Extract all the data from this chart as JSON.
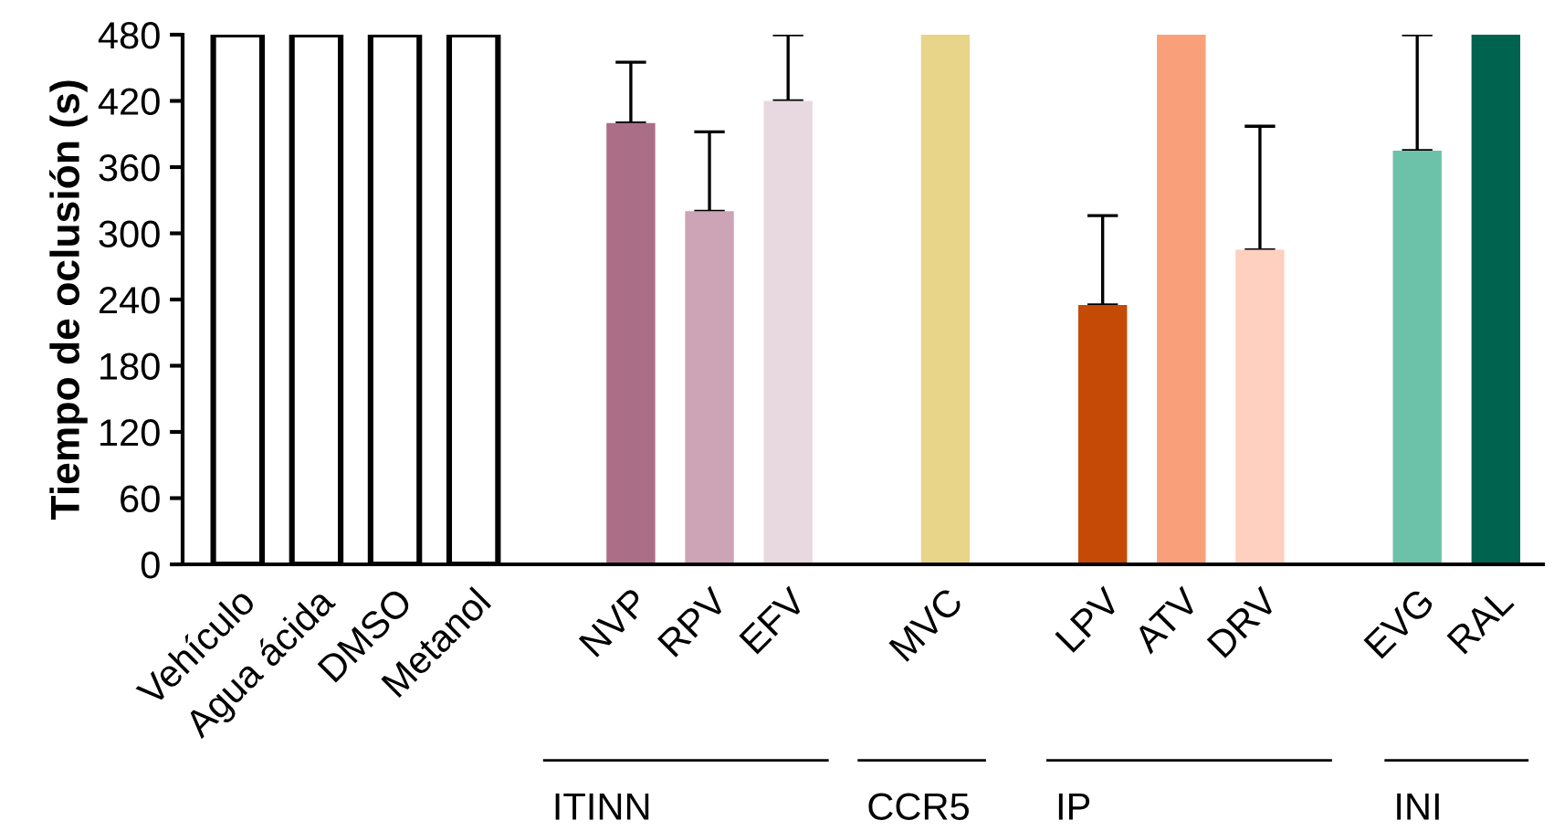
{
  "chart_data": {
    "type": "bar",
    "ylabel": "Tiempo de oclusión (s)",
    "categories": [
      "Vehículo",
      "Agua ácida",
      "DMSO",
      "Metanol",
      null,
      "NVP",
      "RPV",
      "EFV",
      null,
      "MVC",
      null,
      "LPV",
      "ATV",
      "DRV",
      null,
      "EVG",
      "RAL"
    ],
    "values": [
      480,
      480,
      480,
      480,
      null,
      400,
      320,
      420,
      null,
      480,
      null,
      235,
      480,
      285,
      null,
      375,
      480
    ],
    "colors": [
      "#ffffff",
      "#ffffff",
      "#ffffff",
      "#ffffff",
      null,
      "#ab6e87",
      "#cda3b6",
      "#e8d8e0",
      null,
      "#e8d58a",
      null,
      "#c44a06",
      "#f9a07a",
      "#fdd0c0",
      null,
      "#6cc2a9",
      "#00634f"
    ],
    "errors": [
      null,
      null,
      null,
      null,
      null,
      [
        400,
        455
      ],
      [
        320,
        392
      ],
      [
        420,
        480
      ],
      null,
      null,
      null,
      [
        235,
        316
      ],
      null,
      [
        285,
        397
      ],
      null,
      [
        375,
        480
      ],
      null
    ],
    "ylim": [
      0,
      480
    ],
    "yticks": [
      0,
      60,
      120,
      180,
      240,
      300,
      360,
      420,
      480
    ],
    "grid": false,
    "legend": false,
    "annotations": [
      "ITINN",
      "CCR5",
      "IP",
      "INI"
    ]
  }
}
